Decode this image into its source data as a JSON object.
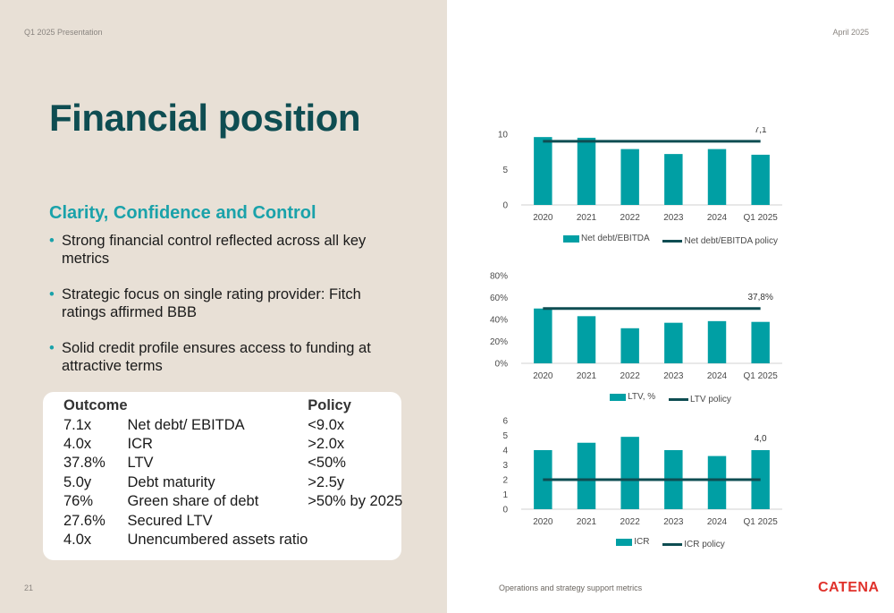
{
  "header": {
    "left": "Q1 2025 Presentation",
    "right": "April 2025"
  },
  "title": "Financial position",
  "subtitle": "Clarity, Confidence and Control",
  "bullets": [
    "Strong financial control reflected across all key metrics",
    "Strategic focus on single rating provider: Fitch ratings affirmed BBB",
    "Solid credit profile ensures access to funding at attractive terms"
  ],
  "table": {
    "headers": [
      "Outcome",
      "",
      "Policy"
    ],
    "rows": [
      [
        "7.1x",
        "Net debt/ EBITDA",
        "<9.0x"
      ],
      [
        "4.0x",
        "ICR",
        ">2.0x"
      ],
      [
        "37.8%",
        "LTV",
        "<50%"
      ],
      [
        "5.0y",
        "Debt maturity",
        ">2.5y"
      ],
      [
        "76%",
        "Green share of debt",
        ">50% by 2025"
      ],
      [
        "27.6%",
        "Secured LTV",
        ""
      ],
      [
        "4.0x",
        "Unencumbered assets ratio",
        ""
      ]
    ]
  },
  "footer": {
    "page": "21",
    "note": "Operations and strategy support metrics",
    "logo": "CATENA"
  },
  "colors": {
    "bar": "#009fa4",
    "policy_line": "#0e4d52",
    "title": "#0e4d52",
    "accent": "#1aa2aa",
    "logo": "#e0312b",
    "panel": "#e8e0d6"
  },
  "chart_data": [
    {
      "type": "bar",
      "categories": [
        "2020",
        "2021",
        "2022",
        "2023",
        "2024",
        "Q1 2025"
      ],
      "series": [
        {
          "name": "Net debt/EBITDA",
          "values": [
            9.6,
            9.5,
            7.9,
            7.2,
            7.9,
            7.1
          ]
        },
        {
          "name": "Net debt/EBITDA policy",
          "type": "line",
          "values": [
            9.0,
            9.0,
            9.0,
            9.0,
            9.0,
            9.0
          ]
        }
      ],
      "ylim": [
        0,
        10
      ],
      "yticks": [
        0,
        5,
        10
      ],
      "ytick_labels": [
        "0",
        "5",
        "10"
      ],
      "data_label": "7,1",
      "legend": "bottom",
      "grid": false
    },
    {
      "type": "bar",
      "categories": [
        "2020",
        "2021",
        "2022",
        "2023",
        "2024",
        "Q1 2025"
      ],
      "series": [
        {
          "name": "LTV, %",
          "values": [
            50,
            43,
            32,
            37,
            38.5,
            37.8
          ]
        },
        {
          "name": "LTV policy",
          "type": "line",
          "values": [
            50,
            50,
            50,
            50,
            50,
            50
          ]
        }
      ],
      "ylim": [
        0,
        80
      ],
      "yticks": [
        0,
        20,
        40,
        60,
        80
      ],
      "ytick_labels": [
        "0%",
        "20%",
        "40%",
        "60%",
        "80%"
      ],
      "data_label": "37,8%",
      "legend": "bottom",
      "grid": false
    },
    {
      "type": "bar",
      "categories": [
        "2020",
        "2021",
        "2022",
        "2023",
        "2024",
        "Q1 2025"
      ],
      "series": [
        {
          "name": "ICR",
          "values": [
            4.0,
            4.5,
            4.9,
            4.0,
            3.6,
            4.0
          ]
        },
        {
          "name": "ICR policy",
          "type": "line",
          "values": [
            2.0,
            2.0,
            2.0,
            2.0,
            2.0,
            2.0
          ]
        }
      ],
      "ylim": [
        0,
        6
      ],
      "yticks": [
        0,
        1,
        2,
        3,
        4,
        5,
        6
      ],
      "ytick_labels": [
        "0",
        "1",
        "2",
        "3",
        "4",
        "5",
        "6"
      ],
      "data_label": "4,0",
      "legend": "bottom",
      "grid": false
    }
  ]
}
